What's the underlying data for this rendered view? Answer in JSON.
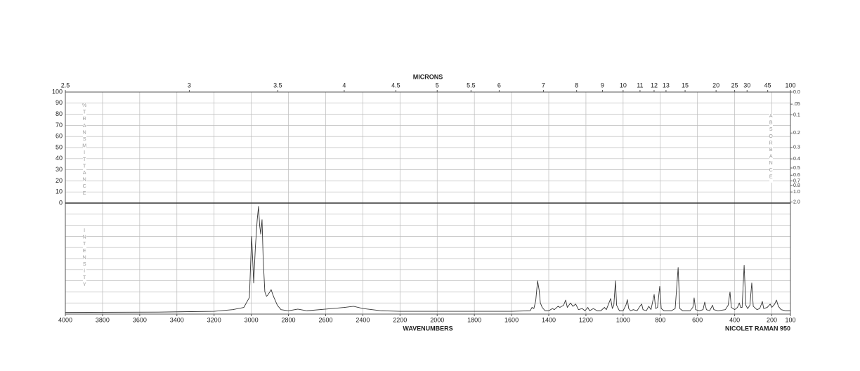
{
  "chart_data": {
    "type": "line",
    "top_axis_label": "MICRONS",
    "x_label": "WAVENUMBERS",
    "instrument": "NICOLET RAMAN 950",
    "left_axis_label": "%TRANSMITTANCE",
    "right_axis_label": "ABSORBANCE",
    "lower_axis_label": "INTENSITY",
    "xlim": [
      4000,
      100
    ],
    "xticks": [
      4000,
      3800,
      3600,
      3400,
      3200,
      3000,
      2800,
      2600,
      2400,
      2200,
      2000,
      1800,
      1600,
      1400,
      1200,
      1000,
      800,
      600,
      400,
      200,
      100
    ],
    "x2ticks": [
      2.5,
      3,
      3.5,
      4,
      4.5,
      5,
      5.5,
      6,
      7,
      8,
      9,
      10,
      11,
      12,
      13,
      15,
      20,
      25,
      30,
      45,
      100
    ],
    "ylim": [
      0,
      100
    ],
    "yticks": [
      100,
      90,
      80,
      70,
      60,
      50,
      40,
      30,
      20,
      10,
      0
    ],
    "y2ticks": [
      {
        "value": 0,
        "label": "0.0"
      },
      {
        "value": 0.05,
        "label": ".05"
      },
      {
        "value": 0.1,
        "label": "0.1"
      },
      {
        "value": 0.2,
        "label": "0.2"
      },
      {
        "value": 0.3,
        "label": "0.3"
      },
      {
        "value": 0.4,
        "label": "0.4"
      },
      {
        "value": 0.5,
        "label": "0.5"
      },
      {
        "value": 0.6,
        "label": "0.6"
      },
      {
        "value": 0.7,
        "label": "0.7"
      },
      {
        "value": 0.8,
        "label": "0.8"
      },
      {
        "value": 1.0,
        "label": "1.0"
      },
      {
        "value": 2.0,
        "label": "2.0"
      }
    ],
    "intensity_lim": [
      0,
      100
    ],
    "grid": true,
    "color": "#333333",
    "x": [
      4000,
      3500,
      3200,
      3100,
      3040,
      3010,
      2998,
      2990,
      2987,
      2978,
      2968,
      2961,
      2955,
      2949,
      2942,
      2936,
      2927,
      2918,
      2912,
      2900,
      2893,
      2885,
      2878,
      2860,
      2840,
      2800,
      2750,
      2700,
      2600,
      2500,
      2450,
      2400,
      2300,
      2200,
      2000,
      1800,
      1600,
      1500,
      1490,
      1480,
      1470,
      1460,
      1452,
      1445,
      1435,
      1420,
      1400,
      1380,
      1370,
      1350,
      1340,
      1320,
      1309,
      1300,
      1283,
      1270,
      1255,
      1240,
      1220,
      1205,
      1190,
      1180,
      1160,
      1140,
      1120,
      1100,
      1090,
      1067,
      1058,
      1050,
      1041,
      1035,
      1020,
      1000,
      985,
      977,
      970,
      960,
      945,
      925,
      910,
      900,
      893,
      875,
      862,
      850,
      833,
      825,
      815,
      803,
      795,
      780,
      740,
      720,
      704,
      695,
      680,
      640,
      625,
      618,
      610,
      590,
      570,
      561,
      552,
      535,
      525,
      519,
      512,
      490,
      450,
      435,
      425,
      418,
      400,
      385,
      375,
      368,
      360,
      349,
      340,
      330,
      318,
      308,
      300,
      280,
      265,
      251,
      244,
      225,
      209,
      200,
      185,
      175,
      165,
      150,
      125,
      100
    ],
    "values": [
      1.5,
      1.8,
      2.5,
      4,
      6,
      15,
      70,
      40,
      28,
      60,
      85,
      97,
      80,
      72,
      85,
      50,
      20,
      16,
      17,
      20,
      22,
      18,
      15,
      8,
      4,
      3,
      4.5,
      3,
      4.5,
      6,
      7,
      5,
      3,
      2.5,
      2.5,
      2.5,
      2.5,
      3,
      6,
      5,
      12,
      30,
      22,
      10,
      6,
      3,
      3,
      5,
      4,
      7,
      6,
      8,
      12.6,
      6,
      10,
      7,
      9,
      4,
      5,
      3,
      6,
      3,
      5,
      3,
      3,
      6,
      4,
      14,
      5,
      8,
      30,
      8,
      3,
      3,
      8,
      13,
      5,
      3,
      4,
      3,
      7,
      9,
      4,
      3,
      7,
      4,
      17.7,
      5,
      6,
      25,
      5,
      3,
      3,
      5,
      42,
      5,
      3,
      3,
      6,
      14.6,
      4,
      3,
      4,
      10.8,
      4,
      3,
      6,
      8,
      4,
      3,
      4,
      8,
      20,
      6,
      4,
      6,
      10,
      6,
      6,
      44,
      8,
      5,
      8,
      28,
      7,
      4,
      5,
      11.4,
      5,
      6,
      9,
      6,
      9,
      12.6,
      7,
      4,
      3,
      3
    ]
  }
}
